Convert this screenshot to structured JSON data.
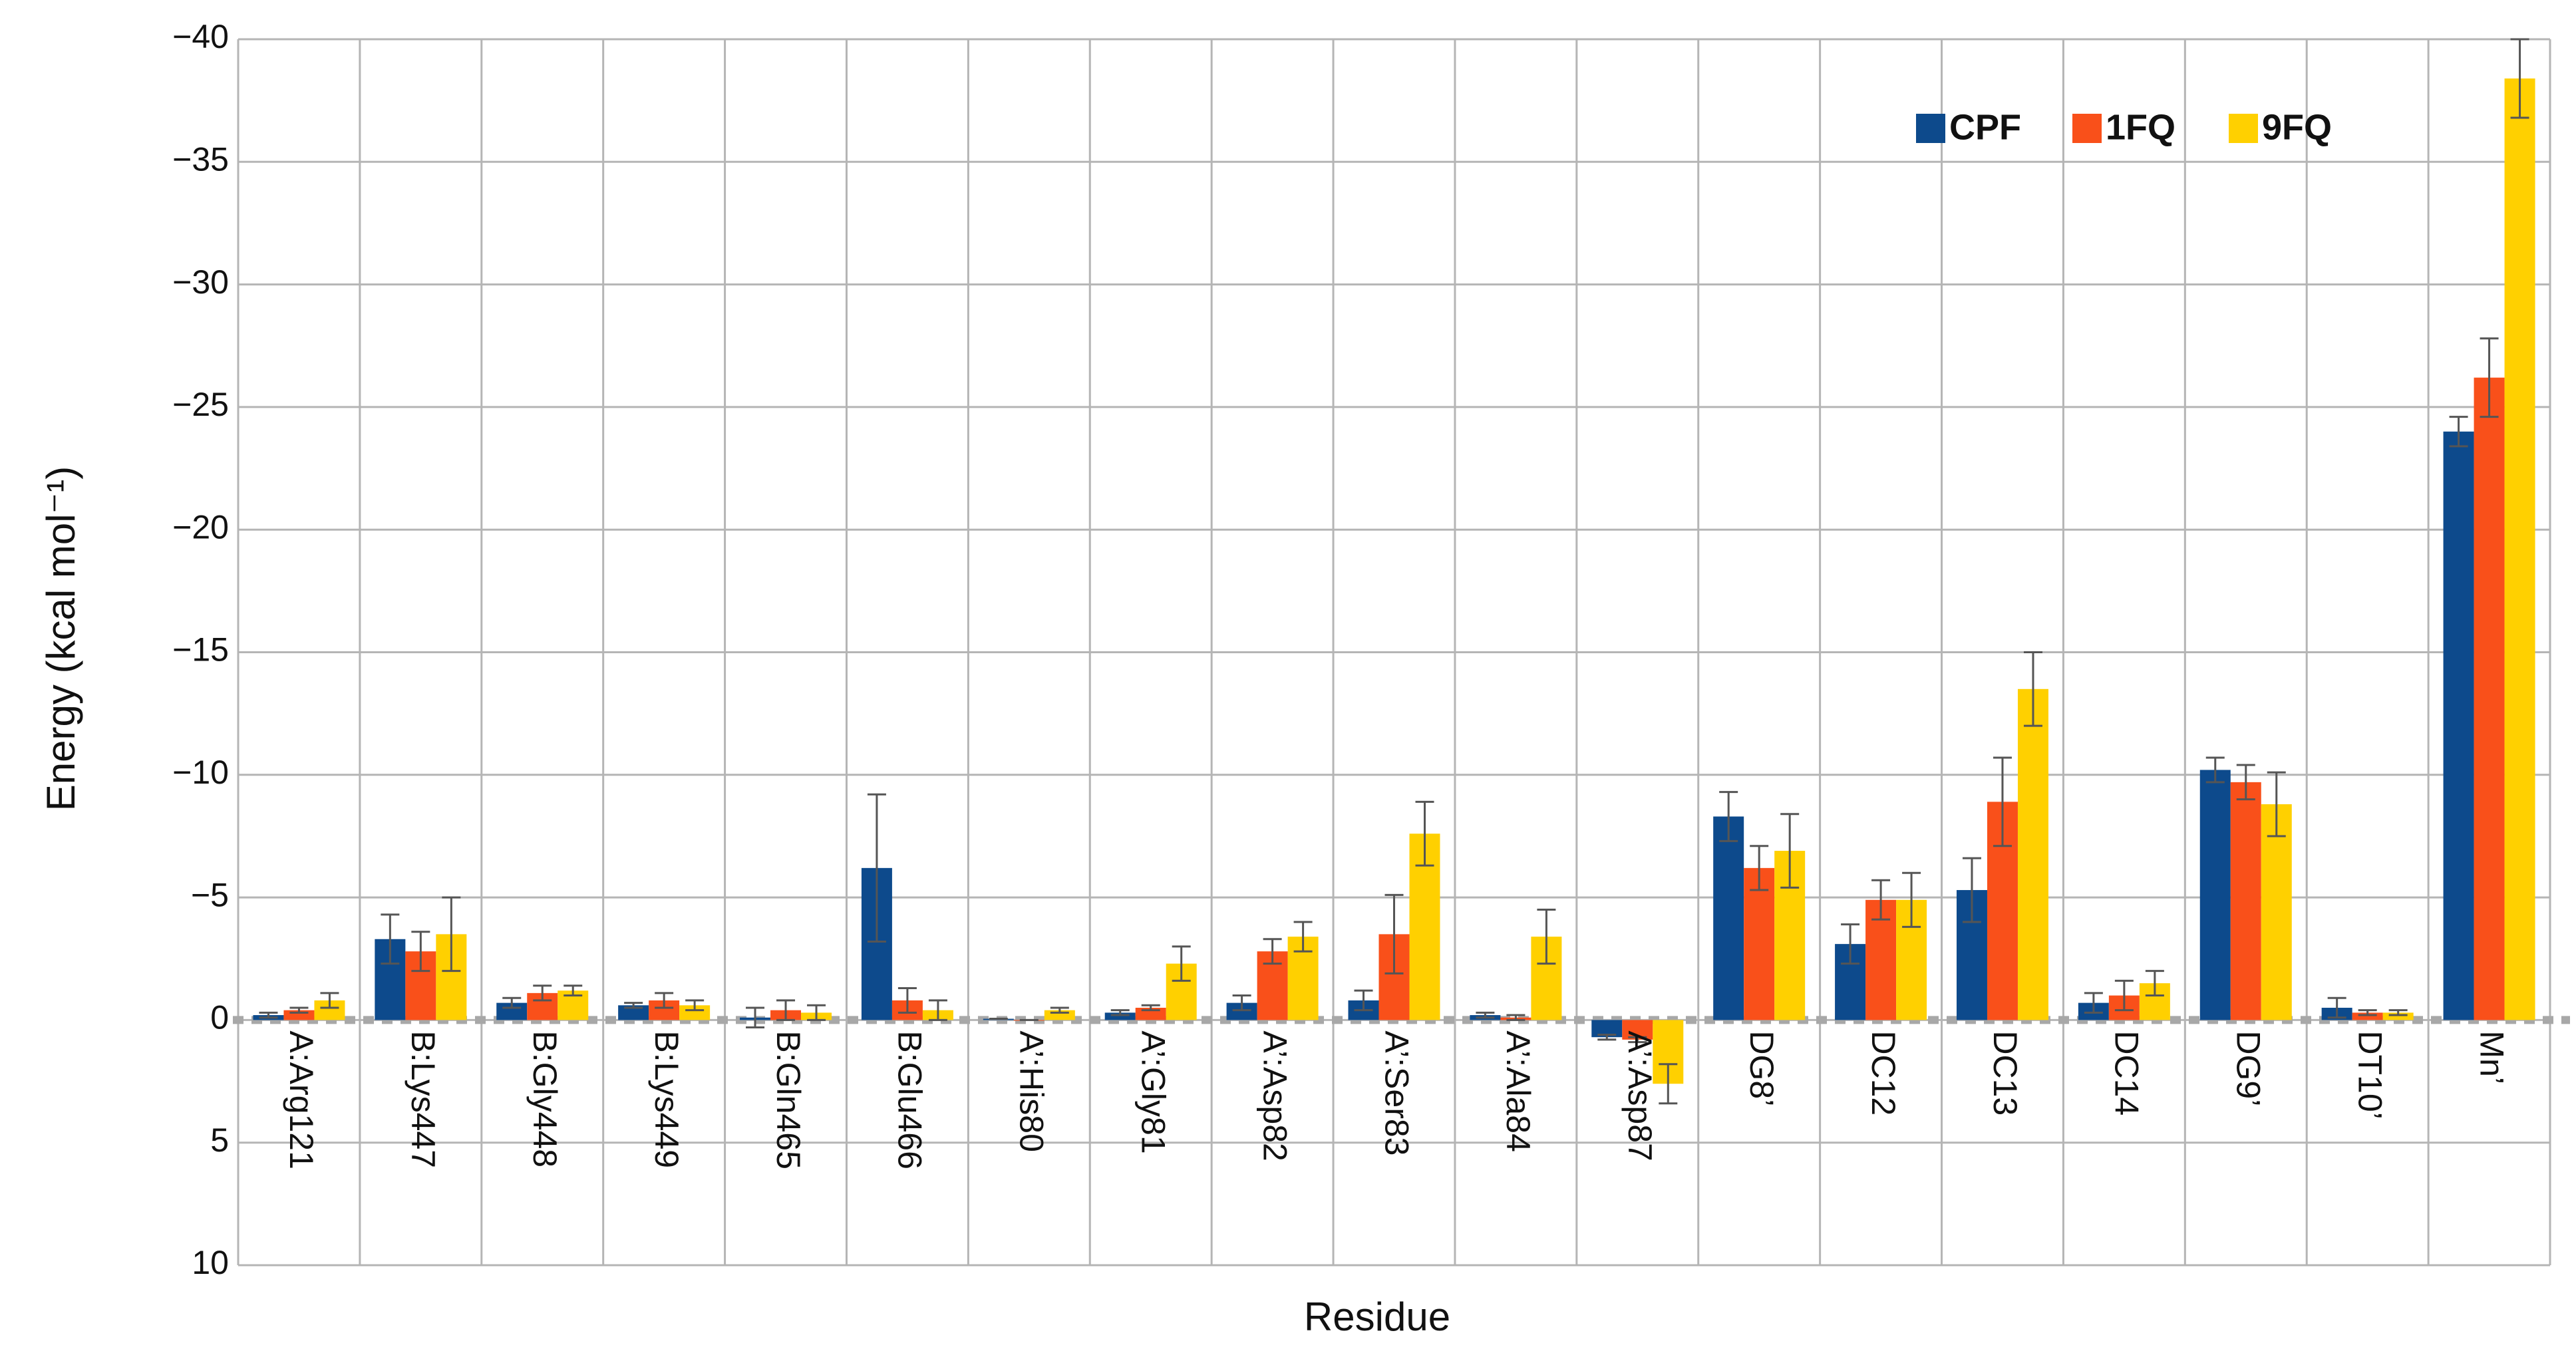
{
  "chart_data": {
    "type": "bar",
    "x_label": "Residue",
    "y_label": "Energy (kcal mol⁻¹)",
    "categories": [
      "A:Arg121",
      "B:Lys447",
      "B:Gly448",
      "B:Lys449",
      "B:Gln465",
      "B:Glu466",
      "A’:His80",
      "A’:Gly81",
      "A’:Asp82",
      "A’:Ser83",
      "A’:Ala84",
      "A’:Asp87",
      "DG8’",
      "DC12",
      "DC13",
      "DC14",
      "DG9’",
      "DT10’",
      "Mn’"
    ],
    "series": [
      {
        "name": "CPF",
        "color": "#0d4a8c",
        "values": [
          -0.2,
          -3.3,
          -0.7,
          -0.6,
          -0.1,
          -6.2,
          -0.05,
          -0.3,
          -0.7,
          -0.8,
          -0.2,
          0.7,
          -8.3,
          -3.1,
          -5.3,
          -0.7,
          -10.2,
          -0.5,
          -24.0
        ],
        "errors": [
          0.1,
          1.0,
          0.2,
          0.1,
          0.4,
          3.0,
          0.0,
          0.1,
          0.3,
          0.4,
          0.1,
          0.1,
          1.0,
          0.8,
          1.3,
          0.4,
          0.5,
          0.4,
          0.6
        ]
      },
      {
        "name": "1FQ",
        "color": "#f9501a",
        "values": [
          -0.4,
          -2.8,
          -1.1,
          -0.8,
          -0.4,
          -0.8,
          0.0,
          -0.5,
          -2.8,
          -3.5,
          -0.1,
          0.8,
          -6.2,
          -4.9,
          -8.9,
          -1.0,
          -9.7,
          -0.3,
          -26.2
        ],
        "errors": [
          0.1,
          0.8,
          0.3,
          0.3,
          0.4,
          0.5,
          0.0,
          0.1,
          0.5,
          1.6,
          0.1,
          0.1,
          0.9,
          0.8,
          1.8,
          0.6,
          0.7,
          0.1,
          1.6
        ]
      },
      {
        "name": "9FQ",
        "color": "#ffd000",
        "values": [
          -0.8,
          -3.5,
          -1.2,
          -0.6,
          -0.3,
          -0.4,
          -0.4,
          -2.3,
          -3.4,
          -7.6,
          -3.4,
          2.6,
          -6.9,
          -4.9,
          -13.5,
          -1.5,
          -8.8,
          -0.3,
          -38.4
        ],
        "errors": [
          0.3,
          1.5,
          0.2,
          0.2,
          0.3,
          0.4,
          0.1,
          0.7,
          0.6,
          1.3,
          1.1,
          0.8,
          1.5,
          1.1,
          1.5,
          0.5,
          1.3,
          0.1,
          1.6
        ]
      }
    ],
    "ylim": [
      10,
      -40
    ],
    "yticks": [
      {
        "value": -40,
        "label": "−40"
      },
      {
        "value": -35,
        "label": "−35"
      },
      {
        "value": -30,
        "label": "−30"
      },
      {
        "value": -25,
        "label": "−25"
      },
      {
        "value": -20,
        "label": "−20"
      },
      {
        "value": -15,
        "label": "−15"
      },
      {
        "value": -10,
        "label": "−10"
      },
      {
        "value": -5,
        "label": "−5"
      },
      0,
      5,
      10
    ],
    "grid": true,
    "legend": "top-right"
  }
}
